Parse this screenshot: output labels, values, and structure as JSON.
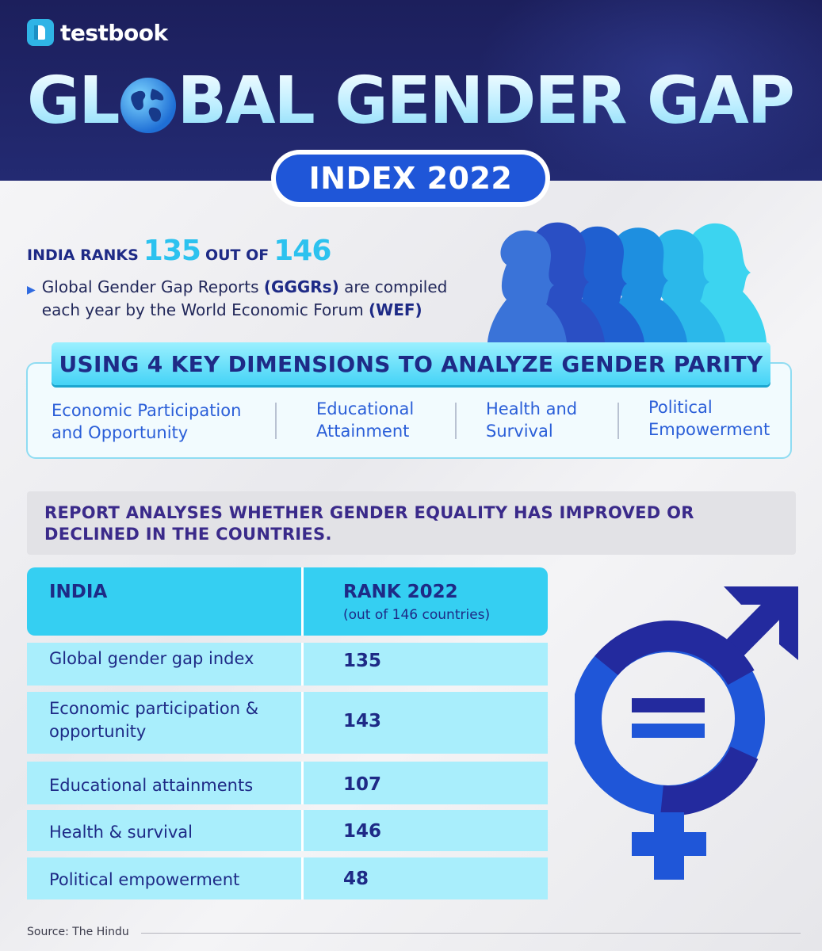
{
  "brand": {
    "logo_text": "testbook"
  },
  "header": {
    "title_part1": "GL",
    "title_part2": "BAL GENDER GAP",
    "subtitle": "INDEX 2022"
  },
  "rank_line": {
    "prefix": "INDIA RANKS",
    "rank": "135",
    "middle": "OUT OF",
    "total": "146"
  },
  "bullet": {
    "text_1": "Global Gender Gap Reports ",
    "text_2": "(GGGRs)",
    "text_3": " are compiled each year by the World Economic Forum ",
    "text_4": "(WEF)"
  },
  "dimensions": {
    "title": "USING 4 KEY DIMENSIONS TO ANALYZE GENDER PARITY",
    "items": [
      "Economic Participation and Opportunity",
      "Educational Attainment",
      "Health and Survival",
      "Political Empowerment"
    ]
  },
  "report": {
    "text": "REPORT ANALYSES WHETHER GENDER EQUALITY HAS IMPROVED OR DECLINED IN THE COUNTRIES."
  },
  "table": {
    "col1_header": "INDIA",
    "col2_header": "RANK 2022",
    "col2_subheader": "(out of 146 countries)",
    "rows": [
      {
        "label": "Global gender gap index",
        "value": "135"
      },
      {
        "label": "Economic participation & opportunity",
        "value": "143"
      },
      {
        "label": "Educational attainments",
        "value": "107"
      },
      {
        "label": "Health & survival",
        "value": "146"
      },
      {
        "label": "Political empowerment",
        "value": "48"
      }
    ]
  },
  "source": "Source: The Hindu",
  "colors": {
    "navy": "#1c1f5c",
    "accent_blue": "#1f56d8",
    "cyan": "#35cff2",
    "light_cyan": "#a9eefc",
    "text_navy": "#1e2a86"
  },
  "icons": [
    "testbook-logo-icon",
    "globe-icon",
    "bullet-triangle-icon",
    "women-silhouettes-image",
    "gender-equality-symbol"
  ]
}
